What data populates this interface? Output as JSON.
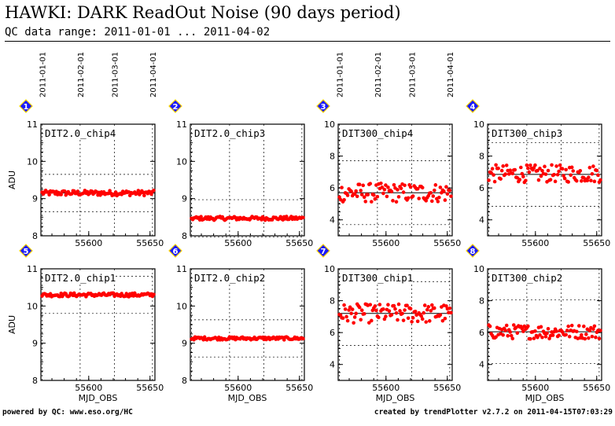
{
  "header": {
    "title": "HAWKI: DARK ReadOut Noise (90 days period)",
    "subtitle": "QC data range: 2011-01-01 ... 2011-04-02"
  },
  "footer": {
    "left": "powered by QC: www.eso.org/HC",
    "right": "created by trendPlotter v2.7.2 on 2011-04-15T07:03:29"
  },
  "colors": {
    "points": "#ff0000",
    "marker_fill": "#1a1aff",
    "marker_border": "#ffd400"
  },
  "date_ticks": [
    "2011-01-01",
    "2011-02-01",
    "2011-03-01",
    "2011-04-01"
  ],
  "chart_data": [
    {
      "type": "scatter",
      "panel": "1",
      "title": "DIT2.0_chip4",
      "ylabel": "ADU",
      "xlabel": "",
      "xlim": [
        55561,
        55654
      ],
      "ylim": [
        8,
        11
      ],
      "xticks": [
        55600,
        55650
      ],
      "yticks": [
        8,
        9,
        10,
        11
      ],
      "mean": 9.15,
      "band": [
        8.65,
        9.65
      ],
      "y_center": 9.15,
      "y_spread": 0.07,
      "x_top_labels": [
        "2011-01-01",
        "2011-02-01",
        "2011-03-01",
        "2011-04-01"
      ]
    },
    {
      "type": "scatter",
      "panel": "2",
      "title": "DIT2.0_chip3",
      "ylabel": "",
      "xlabel": "",
      "xlim": [
        55561,
        55654
      ],
      "ylim": [
        8,
        11
      ],
      "xticks": [
        55600,
        55650
      ],
      "yticks": [
        8,
        9,
        10,
        11
      ],
      "mean": 8.47,
      "band": [
        7.97,
        8.97
      ],
      "y_center": 8.47,
      "y_spread": 0.05
    },
    {
      "type": "scatter",
      "panel": "3",
      "title": "DIT300_chip4",
      "ylabel": "",
      "xlabel": "",
      "xlim": [
        55561,
        55654
      ],
      "ylim": [
        3,
        10
      ],
      "xticks": [
        55600,
        55650
      ],
      "yticks": [
        4,
        6,
        8,
        10
      ],
      "mean": 5.7,
      "band": [
        3.7,
        7.7
      ],
      "y_center": 5.7,
      "y_spread": 0.6,
      "x_top_labels": [
        "2011-01-01",
        "2011-02-01",
        "2011-03-01",
        "2011-04-01"
      ]
    },
    {
      "type": "scatter",
      "panel": "4",
      "title": "DIT300_chip3",
      "ylabel": "",
      "xlabel": "",
      "xlim": [
        55561,
        55654
      ],
      "ylim": [
        3,
        10
      ],
      "xticks": [
        55600,
        55650
      ],
      "yticks": [
        4,
        6,
        8,
        10
      ],
      "mean": 6.85,
      "band": [
        4.85,
        8.85
      ],
      "y_center": 6.9,
      "y_spread": 0.55
    },
    {
      "type": "scatter",
      "panel": "5",
      "title": "DIT2.0_chip1",
      "ylabel": "ADU",
      "xlabel": "MJD_OBS",
      "xlim": [
        55561,
        55654
      ],
      "ylim": [
        8,
        11
      ],
      "xticks": [
        55600,
        55650
      ],
      "yticks": [
        8,
        9,
        10,
        11
      ],
      "mean": 10.3,
      "band": [
        9.8,
        10.8
      ],
      "y_center": 10.3,
      "y_spread": 0.05
    },
    {
      "type": "scatter",
      "panel": "6",
      "title": "DIT2.0_chip2",
      "ylabel": "",
      "xlabel": "MJD_OBS",
      "xlim": [
        55561,
        55654
      ],
      "ylim": [
        8,
        11
      ],
      "xticks": [
        55600,
        55650
      ],
      "yticks": [
        8,
        9,
        10,
        11
      ],
      "mean": 9.13,
      "band": [
        8.63,
        9.63
      ],
      "y_center": 9.13,
      "y_spread": 0.04
    },
    {
      "type": "scatter",
      "panel": "7",
      "title": "DIT300_chip1",
      "ylabel": "",
      "xlabel": "MJD_OBS",
      "xlim": [
        55561,
        55654
      ],
      "ylim": [
        3,
        10
      ],
      "xticks": [
        55600,
        55650
      ],
      "yticks": [
        4,
        6,
        8,
        10
      ],
      "mean": 7.2,
      "band": [
        5.2,
        9.2
      ],
      "y_center": 7.2,
      "y_spread": 0.6
    },
    {
      "type": "scatter",
      "panel": "8",
      "title": "DIT300_chip2",
      "ylabel": "",
      "xlabel": "MJD_OBS",
      "xlim": [
        55561,
        55654
      ],
      "ylim": [
        3,
        10
      ],
      "xticks": [
        55600,
        55650
      ],
      "yticks": [
        4,
        6,
        8,
        10
      ],
      "mean": 6.05,
      "band": [
        4.05,
        8.05
      ],
      "y_center": 6.05,
      "y_spread": 0.45
    }
  ]
}
